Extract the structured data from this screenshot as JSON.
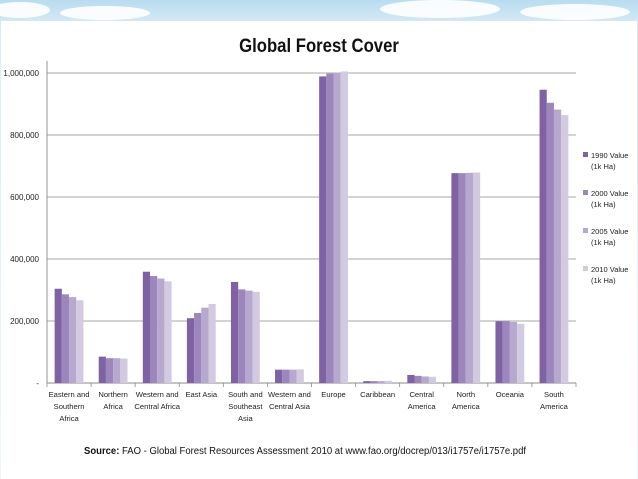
{
  "chart_data": {
    "type": "bar",
    "title": "Global Forest Cover",
    "categories": [
      [
        "Eastern and",
        "Southern",
        "Africa"
      ],
      [
        "Northern",
        "Africa"
      ],
      [
        "Western and",
        "Central Africa"
      ],
      [
        "East Asia"
      ],
      [
        "South and",
        "Southeast",
        "Asia"
      ],
      [
        "Western and",
        "Central Asia"
      ],
      [
        "Europe"
      ],
      [
        "Caribbean"
      ],
      [
        "Central",
        "America"
      ],
      [
        "North",
        "America"
      ],
      [
        "Oceania"
      ],
      [
        "South",
        "America"
      ]
    ],
    "series": [
      {
        "name": [
          "1990 Value",
          "(1k Ha)"
        ],
        "color": "#7e62a3",
        "values": [
          304000,
          85000,
          359000,
          209000,
          326000,
          43000,
          989000,
          6000,
          26000,
          677000,
          199000,
          946000
        ]
      },
      {
        "name": [
          "2000 Value",
          "(1k Ha)"
        ],
        "color": "#9c86bb",
        "values": [
          286000,
          80000,
          345000,
          226000,
          302000,
          43000,
          998000,
          6000,
          23000,
          677000,
          199000,
          904000
        ]
      },
      {
        "name": [
          "2005 Value",
          "(1k Ha)"
        ],
        "color": "#b7a8cf",
        "values": [
          277000,
          80000,
          337000,
          243000,
          298000,
          43000,
          1001000,
          6000,
          21000,
          678000,
          197000,
          882000
        ]
      },
      {
        "name": [
          "2010 Value",
          "(1k Ha)"
        ],
        "color": "#d3cae2",
        "values": [
          267000,
          79000,
          328000,
          255000,
          294000,
          44000,
          1005000,
          7000,
          20000,
          679000,
          191000,
          864000
        ]
      }
    ],
    "ylim": [
      0,
      1000000
    ],
    "yticks": [
      0,
      200000,
      400000,
      600000,
      800000,
      1000000
    ],
    "ytick_labels": [
      "-",
      "200,000",
      "400,000",
      "600,000",
      "800,000",
      "1,000,000"
    ],
    "grid": true,
    "legend_position": "right"
  },
  "source": {
    "label": "Source:",
    "text": " FAO - Global Forest Resources Assessment 2010 at www.fao.org/docrep/013/i1757e/i1757e.pdf"
  }
}
